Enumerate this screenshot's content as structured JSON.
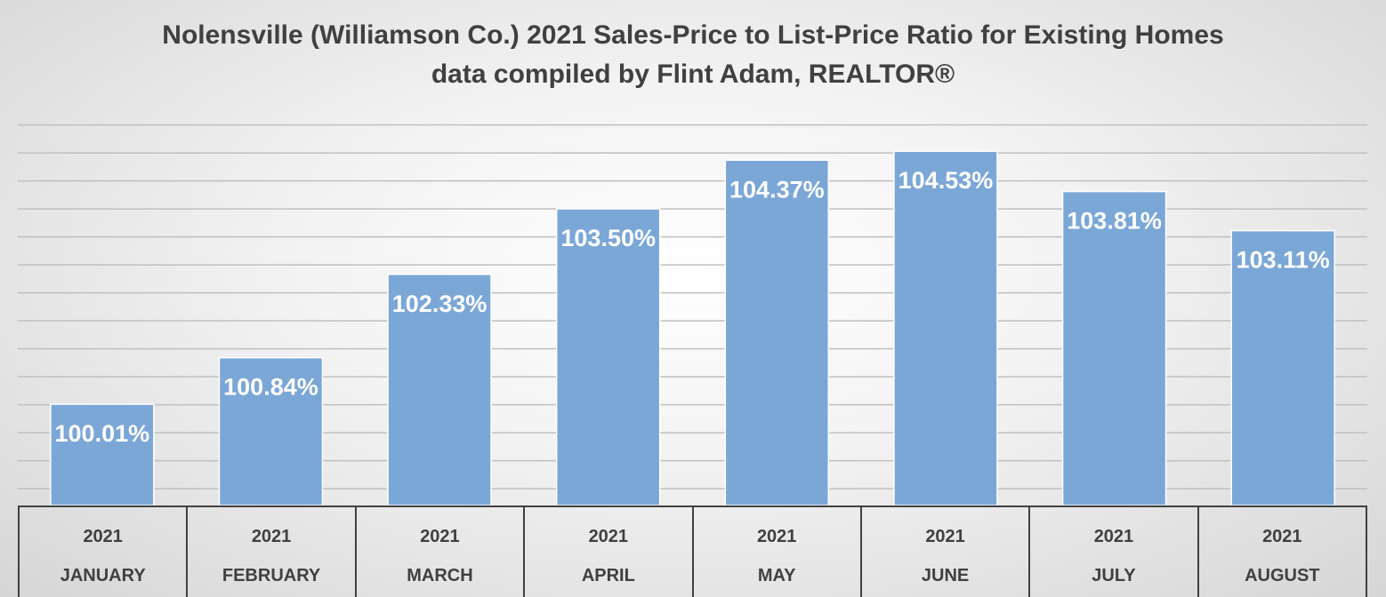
{
  "chart_data": {
    "type": "bar",
    "title": "Nolensville (Williamson Co.) 2021 Sales-Price to List-Price Ratio for Existing Homes",
    "subtitle": "data compiled by Flint Adam, REALTOR®",
    "categories": [
      {
        "year": "2021",
        "month": "JANUARY"
      },
      {
        "year": "2021",
        "month": "FEBRUARY"
      },
      {
        "year": "2021",
        "month": "MARCH"
      },
      {
        "year": "2021",
        "month": "APRIL"
      },
      {
        "year": "2021",
        "month": "MAY"
      },
      {
        "year": "2021",
        "month": "JUNE"
      },
      {
        "year": "2021",
        "month": "JULY"
      },
      {
        "year": "2021",
        "month": "AUGUST"
      }
    ],
    "values": [
      100.01,
      100.84,
      102.33,
      103.5,
      104.37,
      104.53,
      103.81,
      103.11
    ],
    "data_labels": [
      "100.01%",
      "100.84%",
      "102.33%",
      "103.50%",
      "104.37%",
      "104.53%",
      "103.81%",
      "103.11%"
    ],
    "xlabel": "",
    "ylabel": "",
    "ylim": [
      98.2,
      105.2
    ],
    "y_gridline_step": 0.5,
    "y_tick_labels_shown": false,
    "grid": true,
    "legend": "none",
    "colors": {
      "bar": "#7ba7d7",
      "bar_edge": "#ffffff",
      "gridline": "#bfbfbf",
      "title_text": "#404040",
      "data_label_text": "#ffffff",
      "axis_text": "#404040"
    }
  }
}
